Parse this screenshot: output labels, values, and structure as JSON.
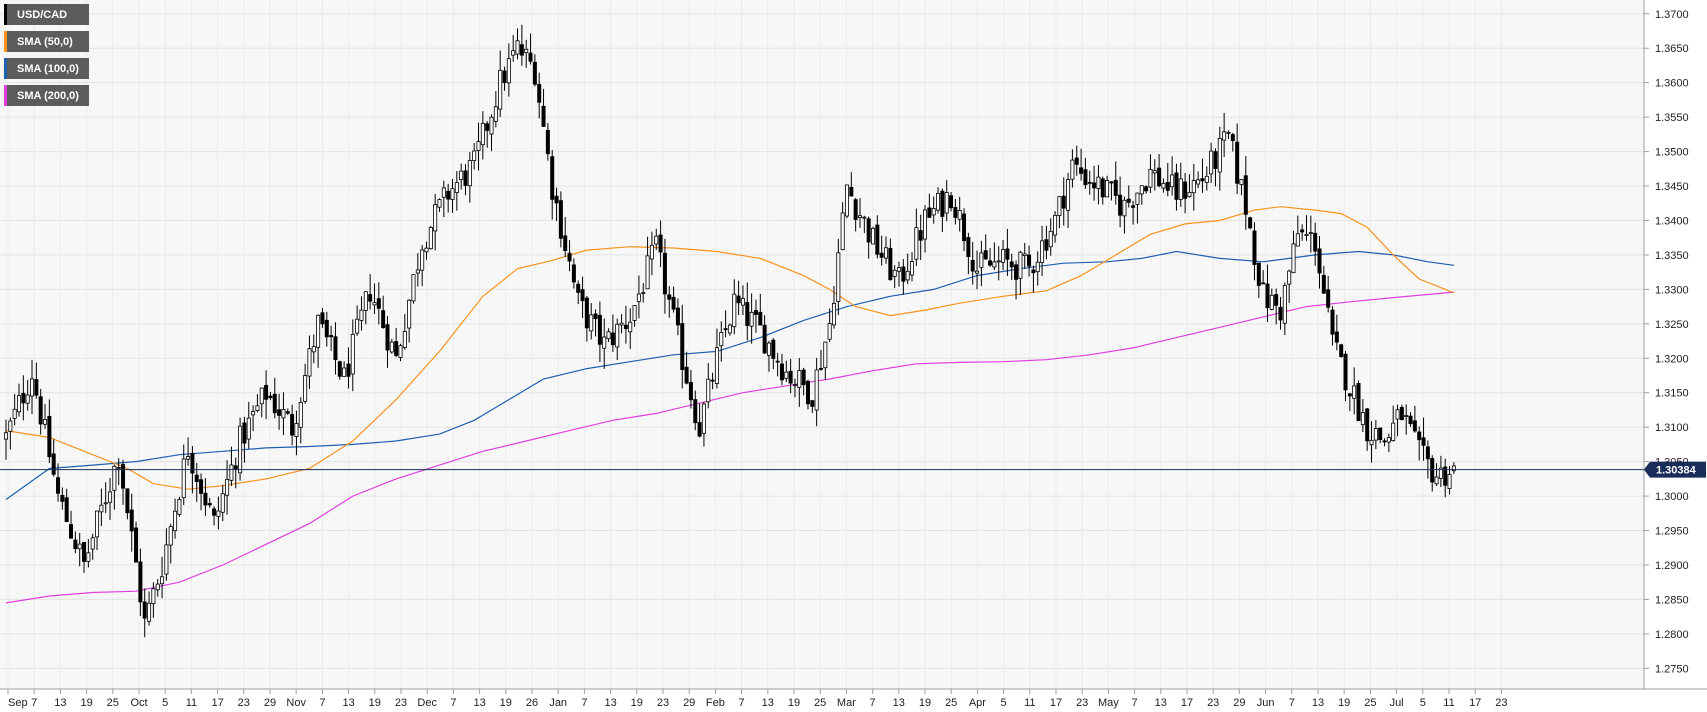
{
  "chart_data": {
    "type": "candlestick",
    "symbol": "USD/CAD",
    "ylim": [
      1.272,
      1.372
    ],
    "yticks": [
      "1.2750",
      "1.2800",
      "1.2850",
      "1.2900",
      "1.2950",
      "1.3000",
      "1.3050",
      "1.3100",
      "1.3150",
      "1.3200",
      "1.3250",
      "1.3300",
      "1.3350",
      "1.3400",
      "1.3450",
      "1.3500",
      "1.3550",
      "1.3600",
      "1.3650",
      "1.3700"
    ],
    "xticks": [
      "Sep",
      "7",
      "13",
      "19",
      "25",
      "Oct",
      "5",
      "11",
      "17",
      "23",
      "29",
      "Nov",
      "7",
      "13",
      "19",
      "23",
      "Dec",
      "7",
      "13",
      "19",
      "26",
      "Jan",
      "7",
      "13",
      "19",
      "23",
      "29",
      "Feb",
      "7",
      "13",
      "19",
      "25",
      "Mar",
      "7",
      "13",
      "19",
      "25",
      "Apr",
      "5",
      "11",
      "17",
      "23",
      "May",
      "7",
      "13",
      "17",
      "23",
      "29",
      "Jun",
      "7",
      "13",
      "19",
      "25",
      "Jul",
      "5",
      "11",
      "17",
      "23"
    ],
    "current_price": 1.30384,
    "current_price_label": "1.30384",
    "grid": true,
    "legend_position": "top-left",
    "series": [
      {
        "name": "USD/CAD",
        "color": "#000000"
      },
      {
        "name": "SMA (50,0)",
        "color": "#f7931e"
      },
      {
        "name": "SMA (100,0)",
        "color": "#1f5fb0"
      },
      {
        "name": "SMA (200,0)",
        "color": "#e040e0"
      }
    ],
    "close_anchors": [
      [
        0,
        1.3085
      ],
      [
        6,
        1.318
      ],
      [
        12,
        1.3
      ],
      [
        18,
        1.29
      ],
      [
        22,
        1.298
      ],
      [
        26,
        1.306
      ],
      [
        30,
        1.29
      ],
      [
        32,
        1.2815
      ],
      [
        36,
        1.29
      ],
      [
        42,
        1.307
      ],
      [
        48,
        1.296
      ],
      [
        54,
        1.308
      ],
      [
        60,
        1.315
      ],
      [
        66,
        1.31
      ],
      [
        72,
        1.325
      ],
      [
        78,
        1.317
      ],
      [
        84,
        1.33
      ],
      [
        90,
        1.32
      ],
      [
        96,
        1.337
      ],
      [
        102,
        1.344
      ],
      [
        108,
        1.348
      ],
      [
        114,
        1.36
      ],
      [
        118,
        1.365
      ],
      [
        122,
        1.362
      ],
      [
        126,
        1.345
      ],
      [
        132,
        1.328
      ],
      [
        138,
        1.322
      ],
      [
        144,
        1.326
      ],
      [
        150,
        1.336
      ],
      [
        156,
        1.32
      ],
      [
        160,
        1.31
      ],
      [
        164,
        1.32
      ],
      [
        168,
        1.328
      ],
      [
        174,
        1.324
      ],
      [
        180,
        1.318
      ],
      [
        186,
        1.315
      ],
      [
        190,
        1.325
      ],
      [
        194,
        1.345
      ],
      [
        200,
        1.337
      ],
      [
        206,
        1.331
      ],
      [
        212,
        1.34
      ],
      [
        218,
        1.344
      ],
      [
        224,
        1.333
      ],
      [
        230,
        1.334
      ],
      [
        236,
        1.333
      ],
      [
        242,
        1.34
      ],
      [
        246,
        1.348
      ],
      [
        252,
        1.345
      ],
      [
        258,
        1.342
      ],
      [
        264,
        1.347
      ],
      [
        270,
        1.344
      ],
      [
        276,
        1.346
      ],
      [
        282,
        1.352
      ],
      [
        286,
        1.342
      ],
      [
        290,
        1.329
      ],
      [
        294,
        1.327
      ],
      [
        298,
        1.338
      ],
      [
        302,
        1.337
      ],
      [
        306,
        1.322
      ],
      [
        310,
        1.316
      ],
      [
        314,
        1.31
      ],
      [
        318,
        1.308
      ],
      [
        322,
        1.312
      ],
      [
        326,
        1.306
      ],
      [
        330,
        1.303
      ],
      [
        334,
        1.3038
      ]
    ],
    "sma50": [
      [
        0,
        1.3095
      ],
      [
        10,
        1.3085
      ],
      [
        20,
        1.306
      ],
      [
        28,
        1.304
      ],
      [
        34,
        1.3018
      ],
      [
        42,
        1.301
      ],
      [
        50,
        1.3015
      ],
      [
        60,
        1.3025
      ],
      [
        70,
        1.304
      ],
      [
        80,
        1.308
      ],
      [
        90,
        1.314
      ],
      [
        100,
        1.321
      ],
      [
        110,
        1.329
      ],
      [
        118,
        1.333
      ],
      [
        126,
        1.3342
      ],
      [
        134,
        1.3357
      ],
      [
        144,
        1.3362
      ],
      [
        154,
        1.336
      ],
      [
        164,
        1.3355
      ],
      [
        174,
        1.3345
      ],
      [
        184,
        1.332
      ],
      [
        190,
        1.33
      ],
      [
        196,
        1.3275
      ],
      [
        204,
        1.3262
      ],
      [
        212,
        1.327
      ],
      [
        220,
        1.328
      ],
      [
        230,
        1.329
      ],
      [
        240,
        1.3298
      ],
      [
        248,
        1.332
      ],
      [
        256,
        1.335
      ],
      [
        264,
        1.338
      ],
      [
        272,
        1.3395
      ],
      [
        280,
        1.34
      ],
      [
        288,
        1.3415
      ],
      [
        294,
        1.342
      ],
      [
        302,
        1.3415
      ],
      [
        308,
        1.341
      ],
      [
        314,
        1.339
      ],
      [
        320,
        1.335
      ],
      [
        326,
        1.3315
      ],
      [
        334,
        1.3295
      ]
    ],
    "sma100": [
      [
        0,
        1.2995
      ],
      [
        10,
        1.304
      ],
      [
        20,
        1.3045
      ],
      [
        30,
        1.305
      ],
      [
        40,
        1.306
      ],
      [
        50,
        1.3065
      ],
      [
        60,
        1.307
      ],
      [
        70,
        1.3072
      ],
      [
        80,
        1.3075
      ],
      [
        90,
        1.308
      ],
      [
        100,
        1.309
      ],
      [
        108,
        1.311
      ],
      [
        116,
        1.314
      ],
      [
        124,
        1.317
      ],
      [
        134,
        1.3185
      ],
      [
        144,
        1.3195
      ],
      [
        154,
        1.3205
      ],
      [
        164,
        1.321
      ],
      [
        174,
        1.323
      ],
      [
        184,
        1.3255
      ],
      [
        194,
        1.3275
      ],
      [
        204,
        1.329
      ],
      [
        214,
        1.33
      ],
      [
        224,
        1.332
      ],
      [
        234,
        1.333
      ],
      [
        244,
        1.3338
      ],
      [
        254,
        1.334
      ],
      [
        262,
        1.3345
      ],
      [
        270,
        1.3355
      ],
      [
        280,
        1.3345
      ],
      [
        290,
        1.334
      ],
      [
        296,
        1.3345
      ],
      [
        302,
        1.335
      ],
      [
        312,
        1.3355
      ],
      [
        320,
        1.335
      ],
      [
        328,
        1.334
      ],
      [
        334,
        1.3335
      ]
    ],
    "sma200": [
      [
        0,
        1.2845
      ],
      [
        10,
        1.2855
      ],
      [
        20,
        1.286
      ],
      [
        30,
        1.2862
      ],
      [
        40,
        1.2875
      ],
      [
        50,
        1.29
      ],
      [
        60,
        1.293
      ],
      [
        70,
        1.296
      ],
      [
        80,
        1.3
      ],
      [
        90,
        1.3025
      ],
      [
        100,
        1.3045
      ],
      [
        110,
        1.3065
      ],
      [
        120,
        1.308
      ],
      [
        130,
        1.3095
      ],
      [
        140,
        1.311
      ],
      [
        150,
        1.312
      ],
      [
        160,
        1.3135
      ],
      [
        170,
        1.315
      ],
      [
        180,
        1.316
      ],
      [
        190,
        1.317
      ],
      [
        200,
        1.3182
      ],
      [
        210,
        1.3192
      ],
      [
        220,
        1.3194
      ],
      [
        230,
        1.3195
      ],
      [
        240,
        1.3198
      ],
      [
        250,
        1.3205
      ],
      [
        260,
        1.3215
      ],
      [
        270,
        1.323
      ],
      [
        280,
        1.3245
      ],
      [
        290,
        1.326
      ],
      [
        300,
        1.3275
      ],
      [
        310,
        1.3282
      ],
      [
        320,
        1.3288
      ],
      [
        334,
        1.3296
      ]
    ]
  },
  "legend": {
    "items": [
      {
        "label": "USD/CAD",
        "color": "#000000"
      },
      {
        "label": "SMA (50,0)",
        "color": "#f7931e"
      },
      {
        "label": "SMA (100,0)",
        "color": "#1f5fb0"
      },
      {
        "label": "SMA (200,0)",
        "color": "#e040e0"
      }
    ]
  }
}
